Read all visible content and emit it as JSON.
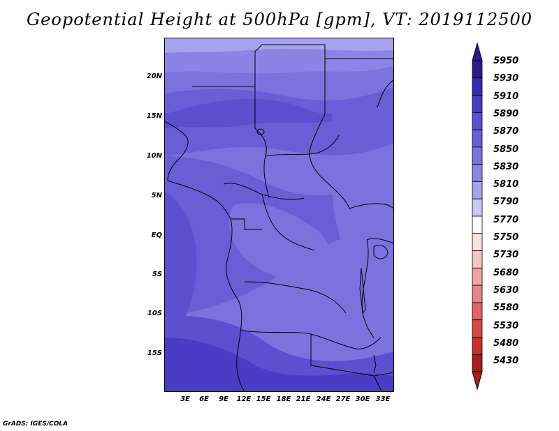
{
  "title": "Geopotential Height at 500hPa [gpm], VT: 2019112500",
  "footer": "GrADS: IGES/COLA",
  "lat_ticks": [
    "20N",
    "15N",
    "10N",
    "5N",
    "EQ",
    "5S",
    "10S",
    "15S"
  ],
  "lon_ticks": [
    "3E",
    "6E",
    "9E",
    "12E",
    "15E",
    "18E",
    "21E",
    "24E",
    "27E",
    "30E",
    "33E"
  ],
  "colorbar": {
    "levels": [
      "5950",
      "5930",
      "5910",
      "5890",
      "5870",
      "5850",
      "5830",
      "5810",
      "5790",
      "5770",
      "5750",
      "5730",
      "5680",
      "5630",
      "5580",
      "5530",
      "5480",
      "5430"
    ],
    "colors": [
      "#2a1a8c",
      "#3a28b0",
      "#4a3cc4",
      "#5c4fd0",
      "#6a5ed6",
      "#7c72de",
      "#8c84e4",
      "#a8a2ec",
      "#ccc8f4",
      "#ffffff",
      "#fde0e0",
      "#f8c4c4",
      "#f2a4a4",
      "#ea8484",
      "#e26464",
      "#d84646",
      "#c83030",
      "#aa1c1c"
    ]
  },
  "map_colors": {
    "band_5850": "#7c72de",
    "band_5870": "#6a5ed6",
    "band_5890": "#5c4fd0",
    "band_5910": "#4a3cc4",
    "band_5830": "#8c84e4"
  }
}
